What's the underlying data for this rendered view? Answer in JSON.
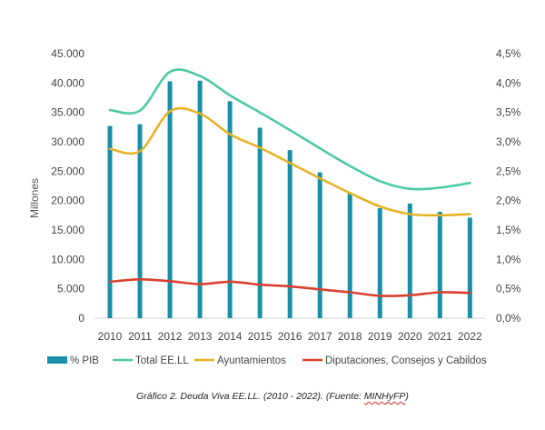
{
  "caption": {
    "text": "Gráfico 2. Deuda Viva EE.LL. (2010 - 2022). (Fuente: ",
    "source": "MINHyFP",
    "close": ")"
  },
  "chart_data": {
    "type": "bar",
    "categories": [
      "2010",
      "2011",
      "2012",
      "2013",
      "2014",
      "2015",
      "2016",
      "2017",
      "2018",
      "2019",
      "2020",
      "2021",
      "2022"
    ],
    "ylabel": "Millones",
    "ylim": [
      0,
      45000
    ],
    "y_ticks": [
      0,
      5000,
      10000,
      15000,
      20000,
      25000,
      30000,
      35000,
      40000,
      45000
    ],
    "y_tick_labels": [
      "0",
      "5.000",
      "10.000",
      "15.000",
      "20.000",
      "25.000",
      "30.000",
      "35.000",
      "40.000",
      "45.000"
    ],
    "y2lim": [
      0,
      4.5
    ],
    "y2_ticks": [
      0,
      0.5,
      1.0,
      1.5,
      2.0,
      2.5,
      3.0,
      3.5,
      4.0,
      4.5
    ],
    "y2_tick_labels": [
      "0,0%",
      "0,5%",
      "1,0%",
      "1,5%",
      "2,0%",
      "2,5%",
      "3,0%",
      "3,5%",
      "4,0%",
      "4,5%"
    ],
    "legend_position": "bottom",
    "grid": false,
    "series": [
      {
        "name": "% PIB",
        "type": "bar",
        "axis": "right",
        "color": "#1a8fa8",
        "values": [
          3.27,
          3.3,
          4.03,
          4.04,
          3.69,
          3.24,
          2.86,
          2.48,
          2.12,
          1.87,
          1.95,
          1.81,
          1.71
        ]
      },
      {
        "name": "Total EE.LL",
        "type": "line",
        "axis": "left",
        "color": "#4cc9a6",
        "values": [
          35400,
          35300,
          41900,
          41200,
          37900,
          35000,
          32000,
          28900,
          25900,
          23300,
          22000,
          22200,
          23000
        ]
      },
      {
        "name": "Ayuntamientos",
        "type": "line",
        "axis": "left",
        "color": "#e6b225",
        "values": [
          28800,
          28400,
          35200,
          34800,
          31300,
          29000,
          26400,
          23800,
          21300,
          19000,
          17700,
          17500,
          17700
        ]
      },
      {
        "name": "Diputaciones, Consejos y Cabildos",
        "type": "line",
        "axis": "left",
        "color": "#d9402e",
        "values": [
          6200,
          6600,
          6300,
          5800,
          6200,
          5700,
          5400,
          4900,
          4400,
          3800,
          3900,
          4400,
          4300
        ]
      }
    ]
  }
}
